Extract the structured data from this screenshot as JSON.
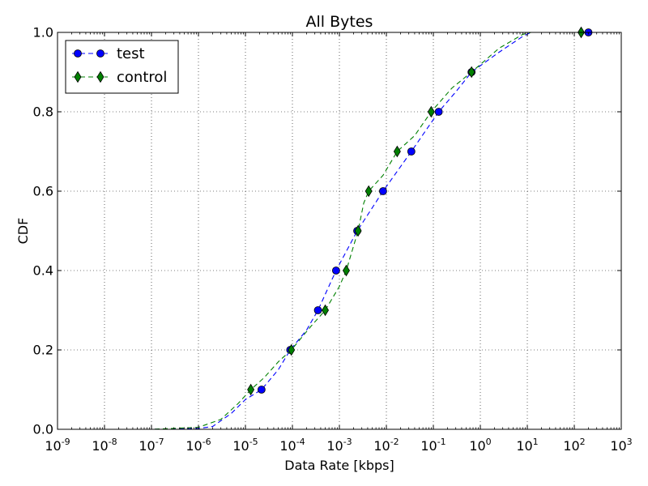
{
  "chart_data": {
    "type": "line",
    "title": "All Bytes",
    "xlabel": "Data Rate [kbps]",
    "ylabel": "CDF",
    "x_scale": "log",
    "xlim": [
      1e-09,
      1000
    ],
    "ylim": [
      0,
      1.0
    ],
    "x_ticks": [
      {
        "value": 1e-09,
        "base": "10",
        "exp": "-9"
      },
      {
        "value": 1e-08,
        "base": "10",
        "exp": "-8"
      },
      {
        "value": 1e-07,
        "base": "10",
        "exp": "-7"
      },
      {
        "value": 1e-06,
        "base": "10",
        "exp": "-6"
      },
      {
        "value": 1e-05,
        "base": "10",
        "exp": "-5"
      },
      {
        "value": 0.0001,
        "base": "10",
        "exp": "-4"
      },
      {
        "value": 0.001,
        "base": "10",
        "exp": "-3"
      },
      {
        "value": 0.01,
        "base": "10",
        "exp": "-2"
      },
      {
        "value": 0.1,
        "base": "10",
        "exp": "-1"
      },
      {
        "value": 1,
        "base": "10",
        "exp": "0"
      },
      {
        "value": 10,
        "base": "10",
        "exp": "1"
      },
      {
        "value": 100,
        "base": "10",
        "exp": "2"
      },
      {
        "value": 1000,
        "base": "10",
        "exp": "3"
      }
    ],
    "y_ticks": [
      {
        "value": 0.0,
        "label": "0.0"
      },
      {
        "value": 0.2,
        "label": "0.2"
      },
      {
        "value": 0.4,
        "label": "0.4"
      },
      {
        "value": 0.6,
        "label": "0.6"
      },
      {
        "value": 0.8,
        "label": "0.8"
      },
      {
        "value": 1.0,
        "label": "1.0"
      }
    ],
    "grid": true,
    "legend_position": "top-left",
    "series": [
      {
        "name": "test",
        "color": "#0000ff",
        "marker": "circle",
        "line_style": "dashed",
        "curve": [
          {
            "x": 1e-09,
            "y": 0.0
          },
          {
            "x": 1e-07,
            "y": 0.0
          },
          {
            "x": 1e-06,
            "y": 0.002
          },
          {
            "x": 2e-06,
            "y": 0.007
          },
          {
            "x": 5e-06,
            "y": 0.04
          },
          {
            "x": 1e-05,
            "y": 0.075
          },
          {
            "x": 2.2e-05,
            "y": 0.1
          },
          {
            "x": 5e-05,
            "y": 0.15
          },
          {
            "x": 9e-05,
            "y": 0.2
          },
          {
            "x": 0.0002,
            "y": 0.25
          },
          {
            "x": 0.00035,
            "y": 0.3
          },
          {
            "x": 0.00085,
            "y": 0.4
          },
          {
            "x": 0.0024,
            "y": 0.5
          },
          {
            "x": 0.0085,
            "y": 0.6
          },
          {
            "x": 0.034,
            "y": 0.7
          },
          {
            "x": 0.13,
            "y": 0.8
          },
          {
            "x": 0.3,
            "y": 0.85
          },
          {
            "x": 0.65,
            "y": 0.9
          },
          {
            "x": 2.5,
            "y": 0.95
          },
          {
            "x": 8,
            "y": 0.99
          },
          {
            "x": 12,
            "y": 1.0
          },
          {
            "x": 200,
            "y": 1.0
          }
        ],
        "markers": [
          {
            "x": 2.2e-05,
            "y": 0.1
          },
          {
            "x": 9e-05,
            "y": 0.2
          },
          {
            "x": 0.00035,
            "y": 0.3
          },
          {
            "x": 0.00085,
            "y": 0.4
          },
          {
            "x": 0.0024,
            "y": 0.5
          },
          {
            "x": 0.0085,
            "y": 0.6
          },
          {
            "x": 0.034,
            "y": 0.7
          },
          {
            "x": 0.13,
            "y": 0.8
          },
          {
            "x": 0.65,
            "y": 0.9
          },
          {
            "x": 200,
            "y": 1.0
          }
        ]
      },
      {
        "name": "control",
        "color": "#008000",
        "marker": "diamond",
        "line_style": "dashed",
        "curve": [
          {
            "x": 1e-09,
            "y": 0.0
          },
          {
            "x": 1e-07,
            "y": 0.0
          },
          {
            "x": 1e-06,
            "y": 0.005
          },
          {
            "x": 3e-06,
            "y": 0.025
          },
          {
            "x": 7e-06,
            "y": 0.065
          },
          {
            "x": 1.3e-05,
            "y": 0.1
          },
          {
            "x": 2.5e-05,
            "y": 0.13
          },
          {
            "x": 5e-05,
            "y": 0.17
          },
          {
            "x": 9.5e-05,
            "y": 0.2
          },
          {
            "x": 0.00025,
            "y": 0.26
          },
          {
            "x": 0.0005,
            "y": 0.3
          },
          {
            "x": 0.001,
            "y": 0.36
          },
          {
            "x": 0.0014,
            "y": 0.4
          },
          {
            "x": 0.0025,
            "y": 0.5
          },
          {
            "x": 0.0033,
            "y": 0.57
          },
          {
            "x": 0.0042,
            "y": 0.6
          },
          {
            "x": 0.0085,
            "y": 0.64
          },
          {
            "x": 0.017,
            "y": 0.7
          },
          {
            "x": 0.04,
            "y": 0.74
          },
          {
            "x": 0.09,
            "y": 0.8
          },
          {
            "x": 0.25,
            "y": 0.86
          },
          {
            "x": 0.65,
            "y": 0.9
          },
          {
            "x": 2.5,
            "y": 0.96
          },
          {
            "x": 8,
            "y": 0.995
          },
          {
            "x": 12,
            "y": 1.0
          },
          {
            "x": 140,
            "y": 1.0
          }
        ],
        "markers": [
          {
            "x": 1.3e-05,
            "y": 0.1
          },
          {
            "x": 9.5e-05,
            "y": 0.2
          },
          {
            "x": 0.0005,
            "y": 0.3
          },
          {
            "x": 0.0014,
            "y": 0.4
          },
          {
            "x": 0.0025,
            "y": 0.5
          },
          {
            "x": 0.0042,
            "y": 0.6
          },
          {
            "x": 0.017,
            "y": 0.7
          },
          {
            "x": 0.09,
            "y": 0.8
          },
          {
            "x": 0.65,
            "y": 0.9
          },
          {
            "x": 140,
            "y": 1.0
          }
        ]
      }
    ]
  }
}
